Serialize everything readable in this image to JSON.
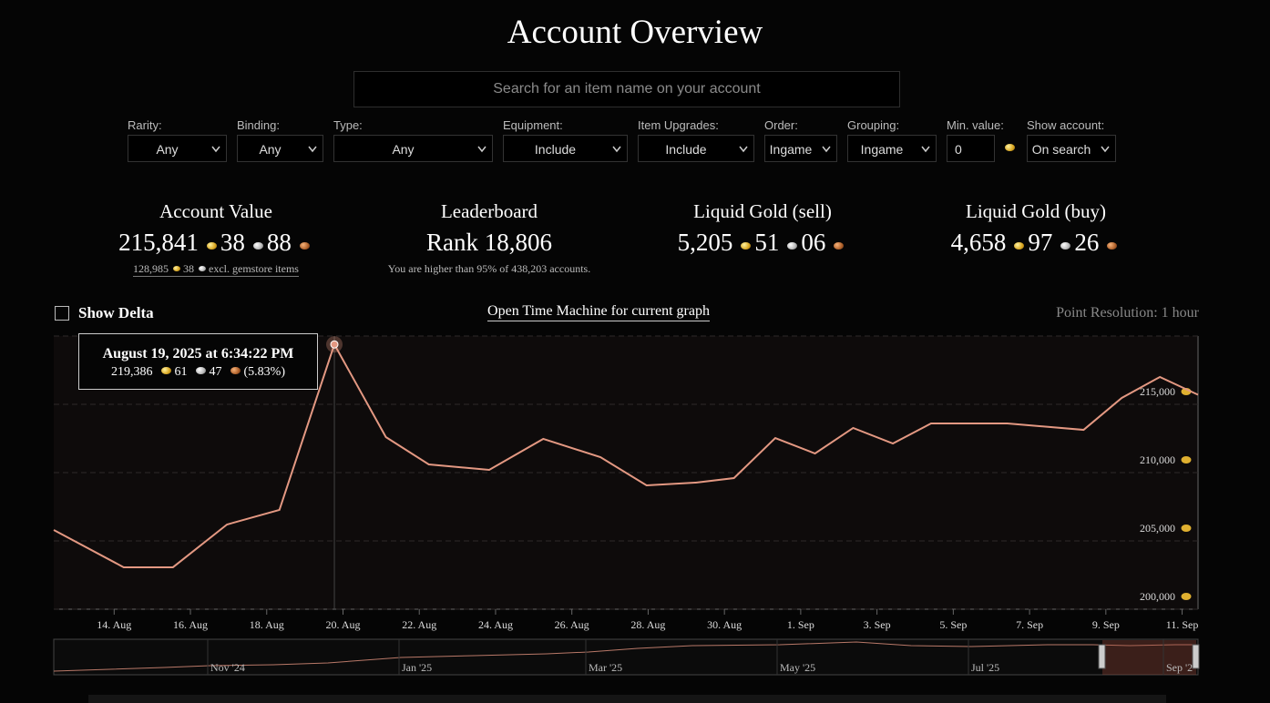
{
  "header": {
    "title": "Account Overview"
  },
  "search": {
    "placeholder": "Search for an item name on your account"
  },
  "filters": [
    {
      "label": "Rarity:",
      "value": "Any"
    },
    {
      "label": "Binding:",
      "value": "Any"
    },
    {
      "label": "Type:",
      "value": "Any"
    },
    {
      "label": "Equipment:",
      "value": "Include"
    },
    {
      "label": "Item Upgrades:",
      "value": "Include"
    },
    {
      "label": "Order:",
      "value": "Ingame"
    },
    {
      "label": "Grouping:",
      "value": "Ingame"
    },
    {
      "label": "Min. value:",
      "value": "0"
    },
    {
      "label": "Show account:",
      "value": "On search"
    }
  ],
  "stats": {
    "account_value": {
      "title": "Account Value",
      "gold": "215,841",
      "silver": "38",
      "copper": "88",
      "note_gold": "128,985",
      "note_silver": "38",
      "note_text": "excl. gemstore items"
    },
    "leaderboard": {
      "title": "Leaderboard",
      "rank": "Rank 18,806",
      "note": "You are higher than 95% of 438,203 accounts."
    },
    "liquid_sell": {
      "title": "Liquid Gold (sell)",
      "gold": "5,205",
      "silver": "51",
      "copper": "06"
    },
    "liquid_buy": {
      "title": "Liquid Gold (buy)",
      "gold": "4,658",
      "silver": "97",
      "copper": "26"
    }
  },
  "controls": {
    "show_delta": "Show Delta",
    "time_machine": "Open Time Machine for current graph",
    "resolution": "Point Resolution: 1 hour"
  },
  "tooltip": {
    "date": "August 19, 2025 at 6:34:22 PM",
    "gold": "219,386",
    "silver": "61",
    "copper": "47",
    "change": "(5.83%)"
  },
  "chart_data": {
    "type": "line",
    "x": [
      "2025-08-12T10:00",
      "2025-08-14T06:00",
      "2025-08-15T13:00",
      "2025-08-16T23:00",
      "2025-08-18T08:00",
      "2025-08-19T18:34",
      "2025-08-21T03:00",
      "2025-08-22T06:00",
      "2025-08-23T20:00",
      "2025-08-25T06:00",
      "2025-08-26T18:00",
      "2025-08-27T23:00",
      "2025-08-29T06:00",
      "2025-08-30T06:00",
      "2025-08-31T08:00",
      "2025-09-01T09:00",
      "2025-09-02T09:00",
      "2025-09-03T10:00",
      "2025-09-04T10:00",
      "2025-09-06T10:00",
      "2025-09-08T10:00",
      "2025-09-09T10:00",
      "2025-09-10T10:00",
      "2025-09-11T10:00"
    ],
    "series": [
      {
        "name": "Account Value",
        "color": "#e39882",
        "values": [
          205800,
          203070,
          203070,
          206200,
          207270,
          219386,
          212600,
          210600,
          210200,
          212470,
          211130,
          209070,
          209270,
          209600,
          212530,
          211400,
          213270,
          212130,
          213600,
          213600,
          213130,
          215470,
          217000,
          215700
        ]
      }
    ],
    "xlim": [
      "2025-08-12T10:00",
      "2025-09-11T10:00"
    ],
    "xticks": [
      {
        "value": "2025-08-14",
        "label": "14. Aug"
      },
      {
        "value": "2025-08-16",
        "label": "16. Aug"
      },
      {
        "value": "2025-08-18",
        "label": "18. Aug"
      },
      {
        "value": "2025-08-20",
        "label": "20. Aug"
      },
      {
        "value": "2025-08-22",
        "label": "22. Aug"
      },
      {
        "value": "2025-08-24",
        "label": "24. Aug"
      },
      {
        "value": "2025-08-26",
        "label": "26. Aug"
      },
      {
        "value": "2025-08-28",
        "label": "28. Aug"
      },
      {
        "value": "2025-08-30",
        "label": "30. Aug"
      },
      {
        "value": "2025-09-01",
        "label": "1. Sep"
      },
      {
        "value": "2025-09-03",
        "label": "3. Sep"
      },
      {
        "value": "2025-09-05",
        "label": "5. Sep"
      },
      {
        "value": "2025-09-07",
        "label": "7. Sep"
      },
      {
        "value": "2025-09-09",
        "label": "9. Sep"
      },
      {
        "value": "2025-09-11",
        "label": "11. Sep"
      }
    ],
    "ylim": [
      200000,
      220000
    ],
    "yticks": [
      {
        "value": 200000,
        "label": "200,000"
      },
      {
        "value": 205000,
        "label": "205,000"
      },
      {
        "value": 210000,
        "label": "210,000"
      },
      {
        "value": 215000,
        "label": "215,000"
      }
    ],
    "grid": true
  },
  "navigator": {
    "labels": [
      "Nov '24",
      "Jan '25",
      "Mar '25",
      "May '25",
      "Jul '25",
      "Sep '2"
    ]
  }
}
